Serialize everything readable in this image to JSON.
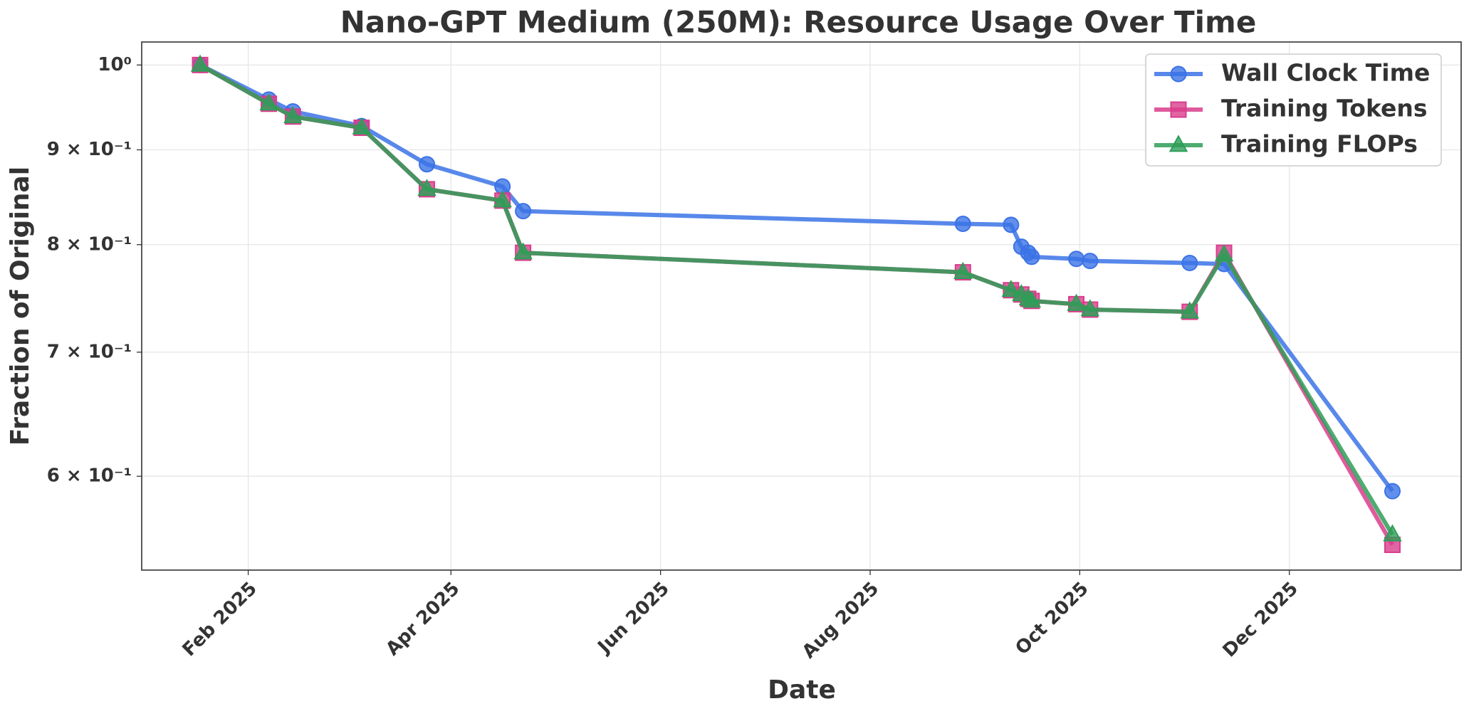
{
  "chart_data": {
    "type": "line",
    "title": "Nano-GPT Medium (250M): Resource Usage Over Time",
    "x_label": "Date",
    "y_label": "Fraction of Original",
    "yscale": "log",
    "grid": true,
    "legend": "upper right",
    "x": [
      "2025-01-18",
      "2025-02-07",
      "2025-02-14",
      "2025-03-06",
      "2025-03-25",
      "2025-04-16",
      "2025-04-22",
      "2025-08-28",
      "2025-09-11",
      "2025-09-14",
      "2025-09-16",
      "2025-09-17",
      "2025-09-30",
      "2025-10-04",
      "2025-11-02",
      "2025-11-12",
      "2025-12-31"
    ],
    "series": [
      {
        "name": "Wall Clock Time",
        "color": "#3b73e6",
        "marker": "circle",
        "values": [
          1.0,
          0.958,
          0.944,
          0.927,
          0.884,
          0.86,
          0.834,
          0.821,
          0.82,
          0.798,
          0.792,
          0.788,
          0.786,
          0.784,
          0.782,
          0.781,
          0.589
        ]
      },
      {
        "name": "Training Tokens",
        "color": "#d93d8c",
        "marker": "square",
        "values": [
          1.0,
          0.953,
          0.938,
          0.925,
          0.857,
          0.845,
          0.792,
          0.773,
          0.756,
          0.752,
          0.748,
          0.746,
          0.743,
          0.738,
          0.736,
          0.792,
          0.551
        ]
      },
      {
        "name": "Training FLOPs",
        "color": "#2e9e57",
        "marker": "triangle",
        "values": [
          1.0,
          0.953,
          0.938,
          0.925,
          0.857,
          0.845,
          0.792,
          0.773,
          0.756,
          0.752,
          0.748,
          0.746,
          0.743,
          0.738,
          0.736,
          0.79,
          0.558
        ]
      }
    ],
    "xlim": [
      "2025-01-01",
      "2026-01-20"
    ],
    "xticks": [
      {
        "value": "2025-02-01",
        "label": "Feb 2025"
      },
      {
        "value": "2025-04-01",
        "label": "Apr 2025"
      },
      {
        "value": "2025-06-01",
        "label": "Jun 2025"
      },
      {
        "value": "2025-08-01",
        "label": "Aug 2025"
      },
      {
        "value": "2025-10-01",
        "label": "Oct 2025"
      },
      {
        "value": "2025-12-01",
        "label": "Dec 2025"
      }
    ],
    "ylim": [
      0.534,
      1.029
    ],
    "yticks": [
      {
        "value": 1,
        "label": "10⁰"
      },
      {
        "value": 0.9,
        "label": "9 × 10⁻¹"
      },
      {
        "value": 0.8,
        "label": "8 × 10⁻¹"
      },
      {
        "value": 0.7,
        "label": "7 × 10⁻¹"
      },
      {
        "value": 0.6,
        "label": "6 × 10⁻¹"
      }
    ]
  }
}
